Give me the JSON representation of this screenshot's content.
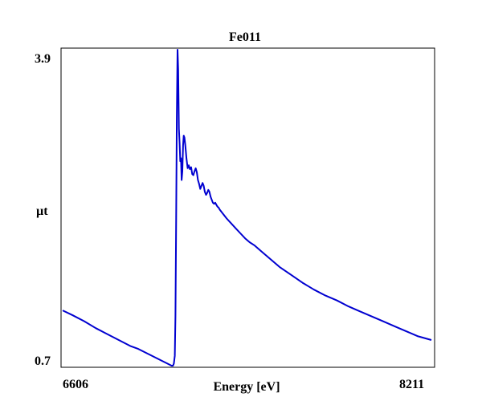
{
  "chart_data": {
    "type": "line",
    "title": "Fe011",
    "xlabel": "Energy [eV]",
    "ylabel": "µt",
    "xlim": [
      6606,
      8211
    ],
    "ylim": [
      0.7,
      3.9
    ],
    "x_tick_labels": [
      "6606",
      "8211"
    ],
    "y_tick_labels": [
      "3.9",
      "0.7"
    ],
    "grid": false,
    "colors": {
      "line": "#0000d0",
      "frame": "#000000"
    },
    "series": [
      {
        "x": [
          6606,
          6650,
          6700,
          6750,
          6800,
          6850,
          6900,
          6935,
          7080,
          7086,
          7090,
          7094,
          7097,
          7100,
          7103,
          7106,
          7109,
          7112,
          7115,
          7118,
          7121,
          7124,
          7127,
          7130,
          7133,
          7136,
          7140,
          7145,
          7150,
          7155,
          7160,
          7165,
          7170,
          7175,
          7180,
          7185,
          7190,
          7195,
          7200,
          7205,
          7210,
          7215,
          7220,
          7225,
          7230,
          7235,
          7240,
          7245,
          7250,
          7255,
          7260,
          7265,
          7270,
          7275,
          7280,
          7285,
          7290,
          7300,
          7320,
          7340,
          7360,
          7380,
          7400,
          7420,
          7440,
          7470,
          7500,
          7550,
          7600,
          7650,
          7700,
          7750,
          7800,
          7850,
          7900,
          7950,
          8000,
          8050,
          8100,
          8150,
          8211
        ],
        "y": [
          1.26,
          1.21,
          1.15,
          1.08,
          1.02,
          0.96,
          0.9,
          0.87,
          0.7,
          0.7,
          0.72,
          0.8,
          1.2,
          2.2,
          3.2,
          3.9,
          3.7,
          3.1,
          2.95,
          2.77,
          2.8,
          2.58,
          2.67,
          2.93,
          3.03,
          3.01,
          2.93,
          2.8,
          2.7,
          2.73,
          2.69,
          2.71,
          2.64,
          2.63,
          2.67,
          2.7,
          2.66,
          2.58,
          2.54,
          2.49,
          2.52,
          2.55,
          2.52,
          2.46,
          2.43,
          2.45,
          2.48,
          2.46,
          2.41,
          2.38,
          2.35,
          2.34,
          2.35,
          2.33,
          2.31,
          2.3,
          2.28,
          2.25,
          2.19,
          2.14,
          2.09,
          2.04,
          1.99,
          1.95,
          1.92,
          1.86,
          1.8,
          1.7,
          1.62,
          1.54,
          1.47,
          1.41,
          1.36,
          1.3,
          1.25,
          1.2,
          1.15,
          1.1,
          1.05,
          1.0,
          0.96
        ]
      }
    ]
  }
}
